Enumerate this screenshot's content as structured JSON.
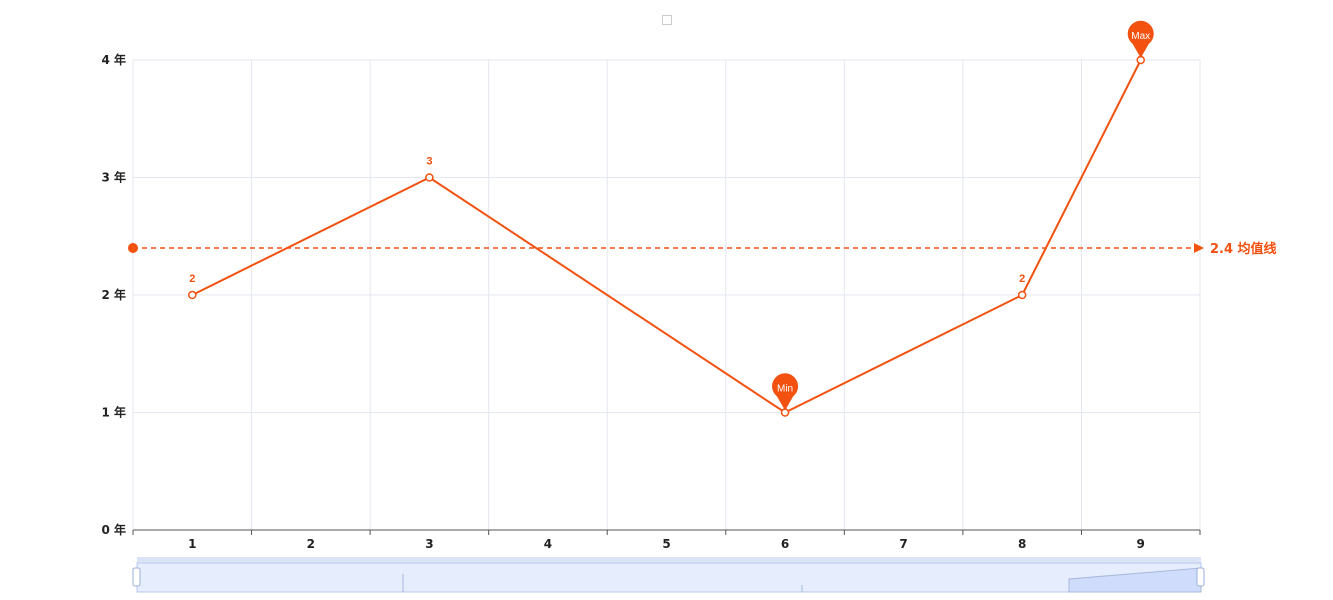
{
  "colors": {
    "series": "#f2510f",
    "grid": "#e3e7ef",
    "axis": "#555555",
    "zoom_fill": "#e6edfc",
    "zoom_border": "#b8c8ee"
  },
  "chart_data": {
    "type": "line",
    "categories": [
      "1",
      "2",
      "3",
      "4",
      "5",
      "6",
      "7",
      "8",
      "9"
    ],
    "series": [
      {
        "values": [
          2,
          null,
          3,
          null,
          null,
          1,
          null,
          2,
          4
        ],
        "data_labels": [
          "2",
          "",
          "3",
          "",
          "",
          "",
          "",
          "2",
          ""
        ]
      }
    ],
    "y_ticks": [
      "0 年",
      "1 年",
      "2 年",
      "3 年",
      "4 年"
    ],
    "ylim": [
      0,
      4
    ],
    "markers": {
      "max": {
        "label": "Max",
        "value": 4,
        "category": "9"
      },
      "min": {
        "label": "Min",
        "value": 1,
        "category": "6"
      }
    },
    "average_line": {
      "value": 2.4,
      "label": "2.4 均值线"
    },
    "grid": true,
    "legend": "top-center",
    "data_zoom": true
  }
}
